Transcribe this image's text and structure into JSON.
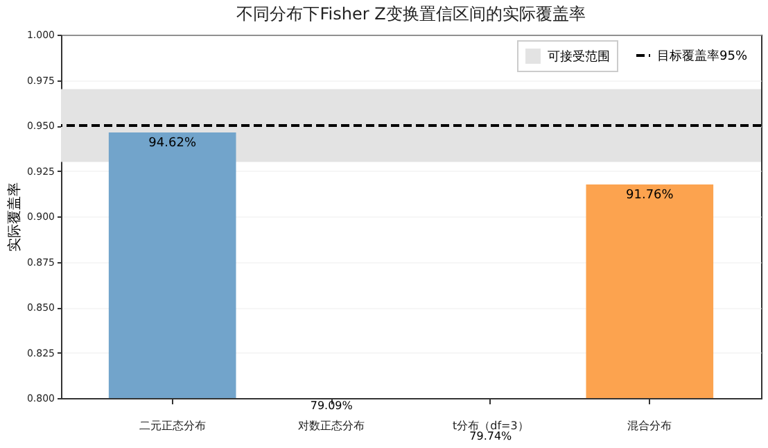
{
  "chart_data": {
    "type": "bar",
    "title": "不同分布下Fisher Z变换置信区间的实际覆盖率",
    "ylabel": "实际覆盖率",
    "categories": [
      "二元正态分布",
      "对数正态分布",
      "t分布（df=3）",
      "混合分布"
    ],
    "values": [
      0.9462,
      null,
      null,
      0.9176
    ],
    "value_labels": [
      "94.62%",
      "79.09%",
      "79.74%",
      "91.76%"
    ],
    "colors": [
      "#72a4cb",
      "#6bbd6b",
      "#e26868",
      "#fca34f"
    ],
    "ylim": [
      0.8,
      1.0
    ],
    "yticks": [
      {
        "value": 0.8,
        "label": "0.800"
      },
      {
        "value": 0.825,
        "label": "0.825"
      },
      {
        "value": 0.85,
        "label": "0.850"
      },
      {
        "value": 0.875,
        "label": "0.875"
      },
      {
        "value": 0.9,
        "label": "0.900"
      },
      {
        "value": 0.925,
        "label": "0.925"
      },
      {
        "value": 0.95,
        "label": "0.950"
      },
      {
        "value": 0.975,
        "label": "0.975"
      },
      {
        "value": 1.0,
        "label": "1.000"
      }
    ],
    "ref_lines": [
      {
        "axis": "y",
        "value": 0.95,
        "label": "目标覆盖率95%",
        "color": "#000000",
        "line_style": "dashed"
      }
    ],
    "bands": [
      {
        "axis": "y",
        "from": 0.93,
        "to": 0.97,
        "label": "可接受范围",
        "color": "#e3e3e3"
      }
    ],
    "grid": "y",
    "legend": "top right"
  }
}
